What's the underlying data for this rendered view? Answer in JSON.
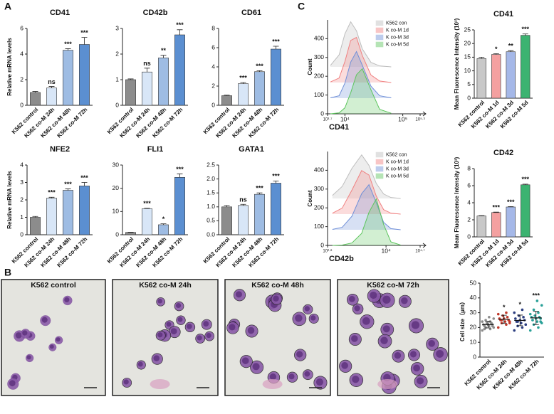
{
  "panel_labels": [
    "A",
    "B",
    "C"
  ],
  "images": [
    {
      "title": "K562 control"
    },
    {
      "title": "K562 co-M 24h"
    },
    {
      "title": "K562 co-M 48h"
    },
    {
      "title": "K562 co-M 72h"
    }
  ],
  "chart_data": [
    {
      "type": "bar",
      "title": "CD41",
      "ylabel": "Relative mRNA levels",
      "categories": [
        "K562 control",
        "K562 co-M 24h",
        "K562 co-M 48h",
        "K562 co-M 72h"
      ],
      "values": [
        1.0,
        1.35,
        4.3,
        4.75
      ],
      "errors": [
        0.08,
        0.12,
        0.12,
        0.55
      ],
      "annotations": [
        null,
        "ns",
        "***",
        "***"
      ],
      "colors": [
        "#8c8c8c",
        "#d8e6f7",
        "#9ebce3",
        "#5b8fd1"
      ],
      "ylim": [
        0,
        6
      ],
      "yticks": [
        0,
        2,
        4,
        6
      ],
      "grid": false
    },
    {
      "type": "bar",
      "title": "CD42b",
      "categories": [
        "K562 control",
        "K562 co-M 24h",
        "K562 co-M 48h",
        "K562 co-M 72h"
      ],
      "values": [
        1.0,
        1.3,
        1.85,
        2.75
      ],
      "errors": [
        0.03,
        0.15,
        0.1,
        0.2
      ],
      "annotations": [
        null,
        "ns",
        "**",
        "***"
      ],
      "colors": [
        "#8c8c8c",
        "#d8e6f7",
        "#9ebce3",
        "#5b8fd1"
      ],
      "ylim": [
        0,
        3
      ],
      "yticks": [
        0,
        1,
        2,
        3
      ],
      "grid": false
    },
    {
      "type": "bar",
      "title": "CD61",
      "categories": [
        "K562 control",
        "K562 co-M 24h",
        "K562 co-M 48h",
        "K562 co-M 72h"
      ],
      "values": [
        1.0,
        2.25,
        3.5,
        5.85
      ],
      "errors": [
        0.05,
        0.12,
        0.1,
        0.3
      ],
      "annotations": [
        null,
        "***",
        "***",
        "***"
      ],
      "colors": [
        "#8c8c8c",
        "#d8e6f7",
        "#9ebce3",
        "#5b8fd1"
      ],
      "ylim": [
        0,
        8
      ],
      "yticks": [
        0,
        2,
        4,
        6,
        8
      ],
      "grid": false
    },
    {
      "type": "bar",
      "title": "NFE2",
      "ylabel": "Relative mRNA levels",
      "categories": [
        "K562 control",
        "K562 co-M 24h",
        "K562 co-M 48h",
        "K562 co-M 72h"
      ],
      "values": [
        1.0,
        2.1,
        2.55,
        2.8
      ],
      "errors": [
        0.05,
        0.05,
        0.08,
        0.2
      ],
      "annotations": [
        null,
        "***",
        "***",
        "***"
      ],
      "colors": [
        "#8c8c8c",
        "#d8e6f7",
        "#9ebce3",
        "#5b8fd1"
      ],
      "ylim": [
        0,
        4
      ],
      "yticks": [
        0,
        1,
        2,
        3,
        4
      ],
      "grid": false
    },
    {
      "type": "bar",
      "title": "FLI1",
      "categories": [
        "K562 control",
        "K562 co-M 24h",
        "K562 co-M 48h",
        "K562 co-M 72h"
      ],
      "values": [
        1.0,
        11.2,
        4.3,
        24.7
      ],
      "errors": [
        0.1,
        0.2,
        0.4,
        1.5
      ],
      "annotations": [
        null,
        "***",
        "*",
        "***"
      ],
      "colors": [
        "#8c8c8c",
        "#d8e6f7",
        "#9ebce3",
        "#5b8fd1"
      ],
      "ylim": [
        0,
        30
      ],
      "yticks": [
        0,
        10,
        20,
        30
      ],
      "grid": false
    },
    {
      "type": "bar",
      "title": "GATA1",
      "categories": [
        "K562 control",
        "K562 co-M 24h",
        "K562 co-M 48h",
        "K562 co-M 72h"
      ],
      "values": [
        1.0,
        1.05,
        1.45,
        1.85
      ],
      "errors": [
        0.05,
        0.04,
        0.05,
        0.08
      ],
      "annotations": [
        null,
        "ns",
        "***",
        "***"
      ],
      "colors": [
        "#8c8c8c",
        "#d8e6f7",
        "#9ebce3",
        "#5b8fd1"
      ],
      "ylim": [
        0,
        2.5
      ],
      "yticks": [
        {
          "value": 0,
          "label": "0.0"
        },
        {
          "value": 0.5,
          "label": "0.5"
        },
        {
          "value": 1,
          "label": "1.0"
        },
        {
          "value": 1.5,
          "label": "1.5"
        },
        {
          "value": 2,
          "label": "2.0"
        },
        {
          "value": 2.5,
          "label": "2.5"
        }
      ],
      "grid": false
    },
    {
      "type": "density",
      "xlabel": "CD41",
      "ylabel": "Count",
      "xscale": "log",
      "legend": "upper right",
      "x": [
        5623,
        7943,
        10000,
        12589,
        15849,
        19953,
        28184,
        39811,
        63096
      ],
      "series": [
        {
          "name": "K562 con",
          "color": "#bdbdbd",
          "values": [
            8,
            64,
            176,
            240,
            192,
            96,
            24,
            5,
            0
          ]
        },
        {
          "name": "K co-M 1d",
          "color": "#f08080",
          "values": [
            3,
            24,
            112,
            224,
            240,
            144,
            40,
            8,
            0
          ]
        },
        {
          "name": "K co-M 3d",
          "color": "#6f8fd8",
          "values": [
            2,
            13,
            80,
            192,
            248,
            176,
            64,
            13,
            2
          ]
        },
        {
          "name": "K co-M 5d",
          "color": "#5cc55c",
          "values": [
            0,
            5,
            32,
            112,
            208,
            240,
            128,
            24,
            3
          ]
        }
      ],
      "xlim": [
        5012,
        199526
      ],
      "xticks": [
        {
          "value": 5012,
          "label": "10³·⁷"
        },
        {
          "value": 10000,
          "label": "10⁴"
        },
        {
          "value": 100000,
          "label": "10⁵"
        },
        {
          "value": 199526,
          "label": "10⁵·³"
        }
      ],
      "ylim": [
        0,
        500
      ],
      "yticks": [
        0,
        100,
        200,
        300,
        400
      ]
    },
    {
      "type": "bar",
      "title": "CD41",
      "ylabel": "Mean Fluorescence Intensity (10³)",
      "categories": [
        "K562 control",
        "K562 co-M 1d",
        "K562 co-M 3d",
        "K562 co-M 5d"
      ],
      "values": [
        14.5,
        16.0,
        17.0,
        23.0
      ],
      "errors": [
        0.5,
        0.3,
        0.4,
        0.5
      ],
      "annotations": [
        null,
        "*",
        "**",
        "***"
      ],
      "colors": [
        "#c8c8c8",
        "#f4a0a0",
        "#a5b8e8",
        "#3cb371"
      ],
      "ylim": [
        0,
        25
      ],
      "yticks": [
        0,
        5,
        10,
        15,
        20,
        25
      ],
      "grid": false
    },
    {
      "type": "density",
      "xlabel": "CD42b",
      "ylabel": "Count",
      "xscale": "log",
      "legend": "upper right",
      "x": [
        794,
        1259,
        1995,
        3162,
        4467,
        6310,
        8913,
        12589,
        19953
      ],
      "series": [
        {
          "name": "K562 con",
          "color": "#bdbdbd",
          "values": [
            16,
            64,
            160,
            232,
            176,
            80,
            24,
            5,
            0
          ]
        },
        {
          "name": "K co-M 1d",
          "color": "#f08080",
          "values": [
            5,
            32,
            128,
            232,
            208,
            96,
            24,
            5,
            0
          ]
        },
        {
          "name": "K co-M 3d",
          "color": "#6f8fd8",
          "values": [
            2,
            13,
            72,
            192,
            240,
            144,
            40,
            6,
            0
          ]
        },
        {
          "name": "K co-M 5d",
          "color": "#5cc55c",
          "values": [
            0,
            2,
            13,
            64,
            176,
            248,
            112,
            19,
            2
          ]
        }
      ],
      "xlim": [
        631,
        50119
      ],
      "xticks": [
        {
          "value": 631,
          "label": "10²·⁸"
        },
        {
          "value": 10000,
          "label": "10⁴"
        },
        {
          "value": 50119,
          "label": "10⁴·⁷"
        }
      ],
      "ylim": [
        0,
        500
      ],
      "yticks": [
        0,
        100,
        200,
        300,
        400
      ]
    },
    {
      "type": "bar",
      "title": "CD42",
      "ylabel": "Mean Fluorescence Intensity (10³)",
      "categories": [
        "K562 control",
        "K562 co-M 1d",
        "K562 co-M 3d",
        "K562 co-M 5d"
      ],
      "values": [
        2.45,
        2.85,
        3.5,
        6.1
      ],
      "errors": [
        0.05,
        0.05,
        0.05,
        0.08
      ],
      "annotations": [
        null,
        "***",
        "***",
        "***"
      ],
      "colors": [
        "#c8c8c8",
        "#f4a0a0",
        "#a5b8e8",
        "#3cb371"
      ],
      "ylim": [
        0,
        8
      ],
      "yticks": [
        0,
        2,
        4,
        6,
        8
      ],
      "grid": false
    },
    {
      "type": "dot",
      "ylabel": "Cell size（μm）",
      "categories": [
        "K562 control",
        "K562 co-M 24h",
        "K562 co-M 48h",
        "K562 co-M 72h"
      ],
      "colors": [
        "#8c8c8c",
        "#c0392b",
        "#2c3e80",
        "#2aa198"
      ],
      "points": [
        [
          18,
          19,
          20,
          20,
          21,
          21,
          22,
          22,
          22,
          23,
          23,
          24,
          24,
          25,
          26,
          27,
          19,
          21
        ],
        [
          20,
          22,
          23,
          24,
          24,
          25,
          25,
          26,
          26,
          27,
          28,
          29,
          30,
          25,
          23
        ],
        [
          18,
          20,
          21,
          22,
          23,
          24,
          25,
          25,
          26,
          27,
          28,
          30,
          32,
          24,
          22
        ],
        [
          18,
          20,
          22,
          23,
          24,
          25,
          26,
          26,
          27,
          27,
          28,
          29,
          30,
          32,
          35,
          38,
          25,
          24
        ]
      ],
      "mean": [
        22,
        25.5,
        24.8,
        26.5
      ],
      "sd": [
        2.3,
        2.8,
        3.6,
        4.5
      ],
      "annotations": [
        null,
        "*",
        "*",
        "***"
      ],
      "ylim": [
        0,
        50
      ],
      "yticks": [
        0,
        10,
        20,
        30,
        40,
        50
      ],
      "grid": false
    }
  ]
}
